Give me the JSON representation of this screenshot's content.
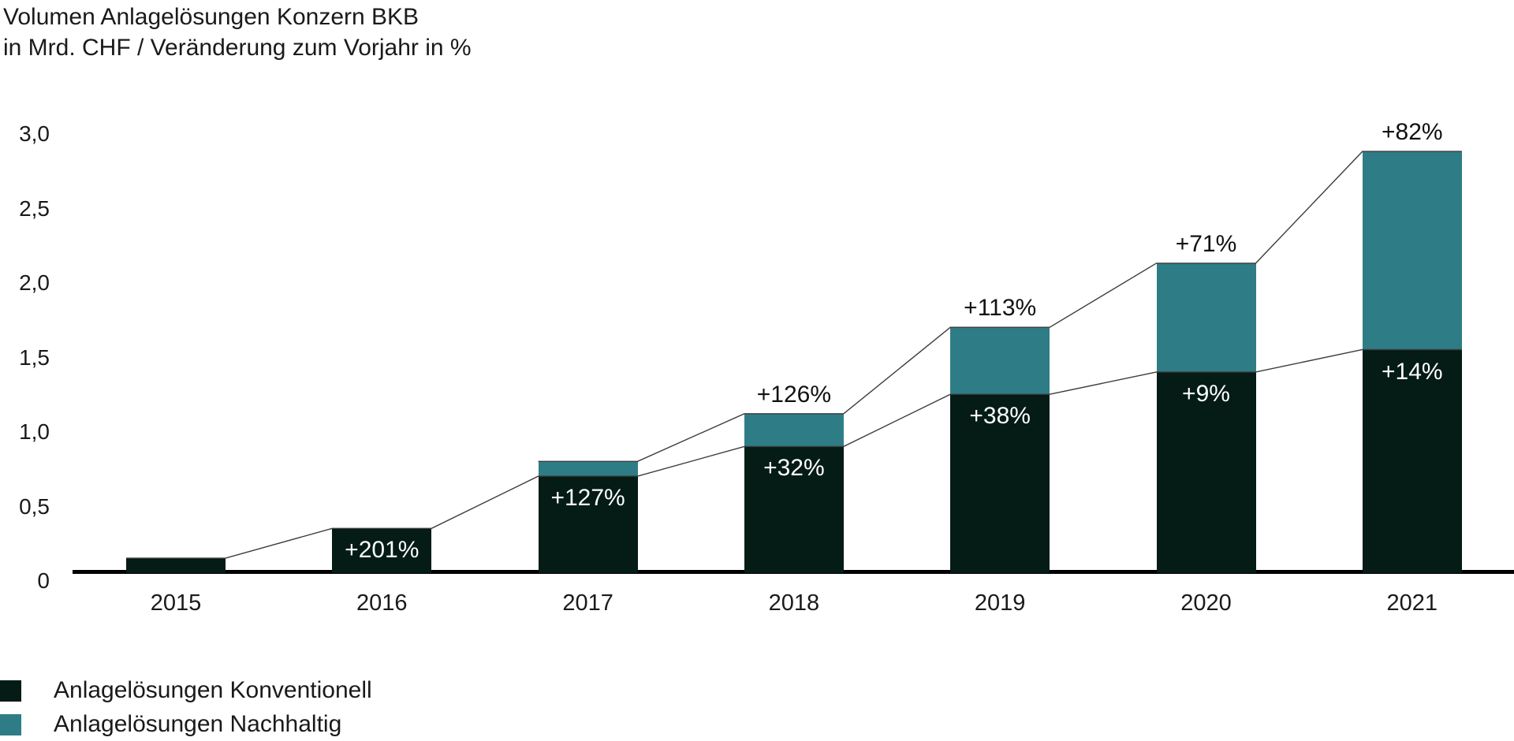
{
  "chart_data": {
    "type": "bar",
    "stacked": true,
    "title": "Volumen Anlagelösungen Konzern BKB",
    "subtitle": "in Mrd. CHF / Veränderung zum Vorjahr in %",
    "unit": "Mrd. CHF",
    "categories": [
      "2015",
      "2016",
      "2017",
      "2018",
      "2019",
      "2020",
      "2021"
    ],
    "series": [
      {
        "name": "Anlagelösungen Konventionell",
        "color": "#041b16",
        "values": [
          0.1,
          0.3,
          0.65,
          0.85,
          1.2,
          1.35,
          1.5
        ],
        "change_labels": [
          "",
          "+201%",
          "+127%",
          "+32%",
          "+38%",
          "+9%",
          "+14%"
        ]
      },
      {
        "name": "Anlagelösungen Nachhaltig",
        "color": "#2e7d86",
        "values": [
          0,
          0,
          0.1,
          0.22,
          0.45,
          0.73,
          1.33
        ],
        "change_labels": [
          "",
          "",
          "",
          "+126%",
          "+113%",
          "+71%",
          "+82%"
        ]
      }
    ],
    "y_ticks": [
      "3,0",
      "2,5",
      "2,0",
      "1,5",
      "1,0",
      "0,5",
      "0"
    ],
    "y_tick_values": [
      3.0,
      2.5,
      2.0,
      1.5,
      1.0,
      0.5,
      0
    ],
    "ylim": [
      0,
      3.0
    ],
    "grid": false,
    "connector_lines": true,
    "legend_position": "bottom-left",
    "colors": {
      "axis": "#000000",
      "connector": "#3c3c3c",
      "text": "#1a1a1a",
      "label_inside": "#ffffff"
    }
  }
}
